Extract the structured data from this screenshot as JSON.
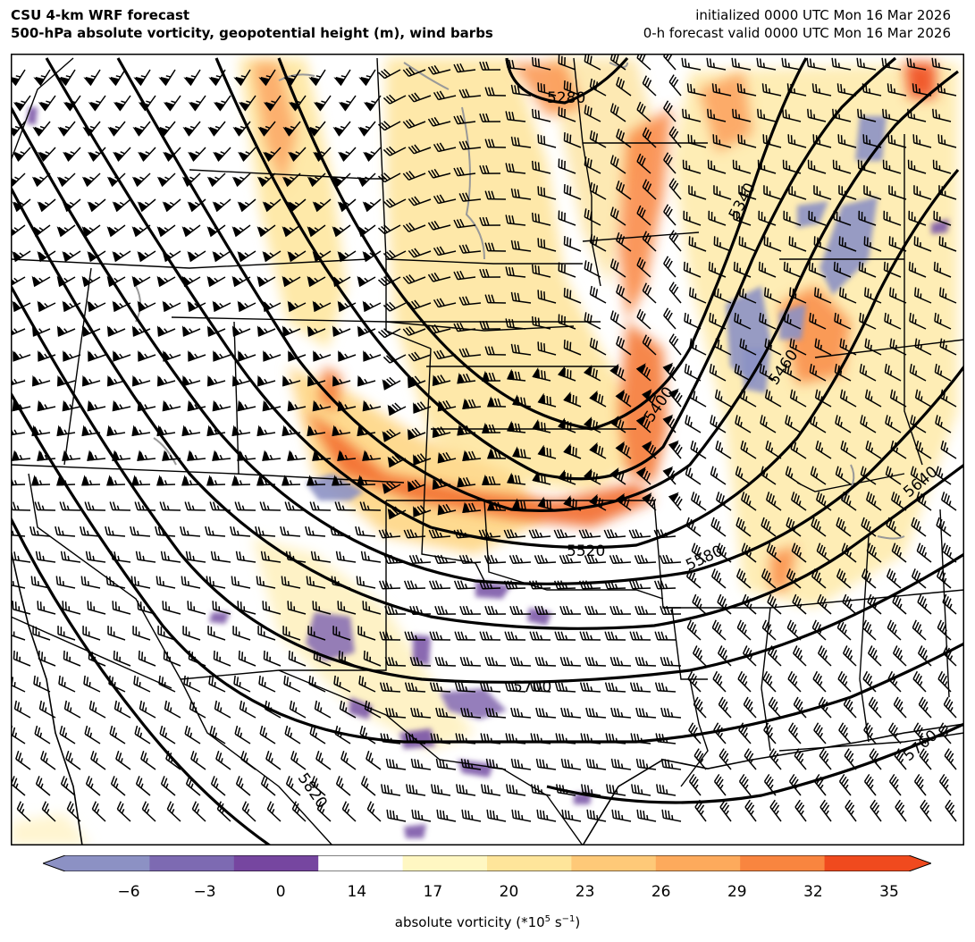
{
  "header": {
    "title_line1": "CSU 4-km WRF forecast",
    "title_line2": "500-hPa absolute vorticity, geopotential height (m), wind barbs",
    "init_line": "initialized 0000 UTC Mon 16 Mar 2026",
    "valid_line": "0-h forecast valid 0000 UTC Mon 16 Mar 2026"
  },
  "map": {
    "region": "Central and western United States",
    "contour_interval_m": 60,
    "contour_labels": [
      "5280",
      "5340",
      "5400",
      "5460",
      "5520",
      "5580",
      "5640",
      "5700",
      "5760",
      "5820"
    ],
    "colors": {
      "height_contour": "#000000",
      "state_border": "#000000",
      "lakes": "#999999",
      "negative_vorticity": "#6b4c9a",
      "strong_positive_vorticity": "#f04a1e"
    }
  },
  "colorbar": {
    "label": "absolute vorticity (*10",
    "label_exp": "5",
    "label_unit_pre": " s",
    "label_unit_exp": "−1",
    "label_close": ")",
    "ticks": [
      "−6",
      "−3",
      "0",
      "14",
      "17",
      "20",
      "23",
      "26",
      "29",
      "32",
      "35"
    ],
    "colors": [
      "#8c91c4",
      "#7d6ab2",
      "#7646a0",
      "#ffffff",
      "#fff7c2",
      "#fee59a",
      "#fec978",
      "#fdaa5c",
      "#f9853f",
      "#f04a1e"
    ]
  }
}
